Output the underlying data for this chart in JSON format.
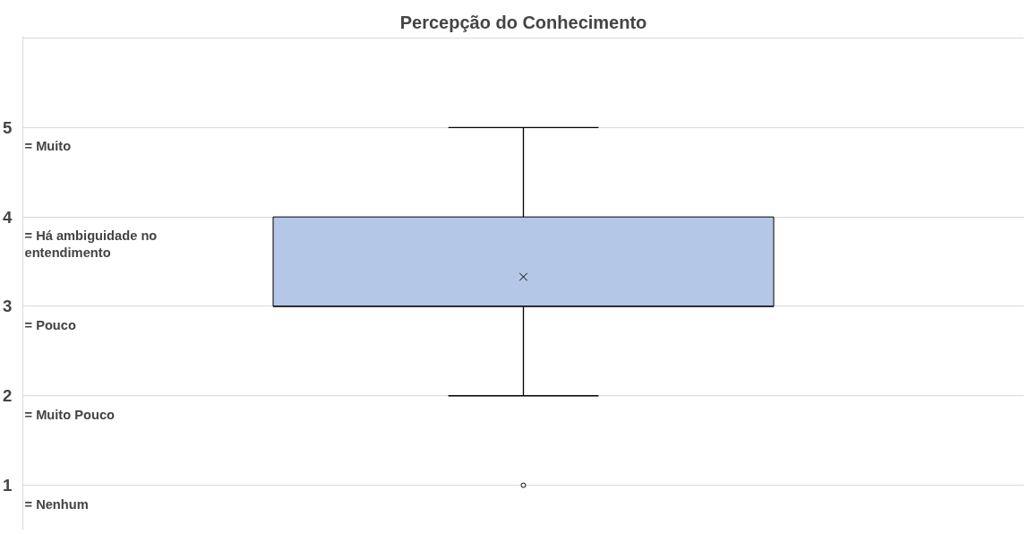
{
  "chart_data": {
    "type": "box",
    "title": "Percepção do Conhecimento",
    "categories": [
      null
    ],
    "boxes": [
      {
        "low": 2,
        "q1": 3,
        "median": 3,
        "q3": 4,
        "high": 5,
        "mean": 3.33,
        "outliers": [
          1
        ]
      }
    ],
    "color": "#b4c7e7",
    "ylim": [
      0.5,
      6.02
    ],
    "yticks": [
      1,
      2,
      3,
      4,
      5,
      {
        "value": 6,
        "label": null
      }
    ],
    "grid": "y",
    "marker": "cross",
    "annotations": [
      "= Nenhum",
      "= Muito Pouco",
      "= Pouco",
      "= Há ambiguidade no\n   entendimento",
      "= Muito"
    ]
  }
}
